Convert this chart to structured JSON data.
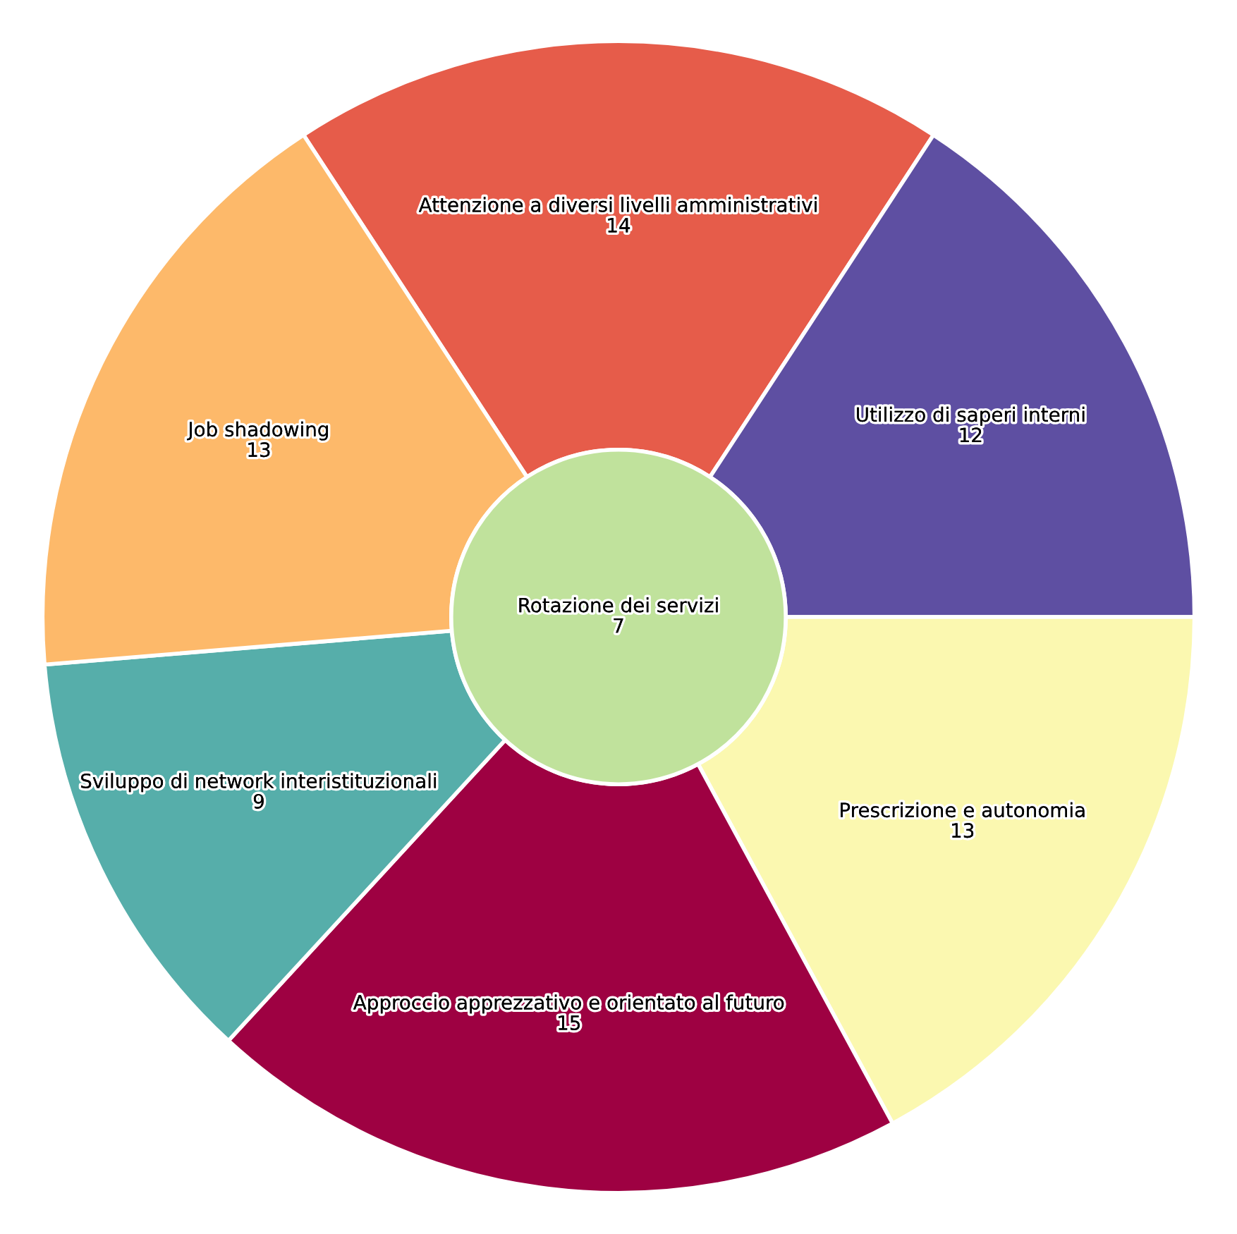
{
  "chart_data": {
    "type": "other",
    "categories": [
      "Attenzione a diversi livelli amministrativi",
      "Utilizzo di saperi interni",
      "Prescrizione e autonomia",
      "Approccio apprezzativo e orientato al futuro",
      "Sviluppo di network interistituzionali",
      "Job shadowing",
      "Rotazione dei servizi"
    ],
    "values": [
      14,
      12,
      13,
      15,
      9,
      13,
      7
    ],
    "colors": [
      "#e65c4a",
      "#5e4fa2",
      "#fbf8b0",
      "#9e0142",
      "#56aeaa",
      "#fdb96a",
      "#c0e29c"
    ],
    "data_labels": true
  }
}
